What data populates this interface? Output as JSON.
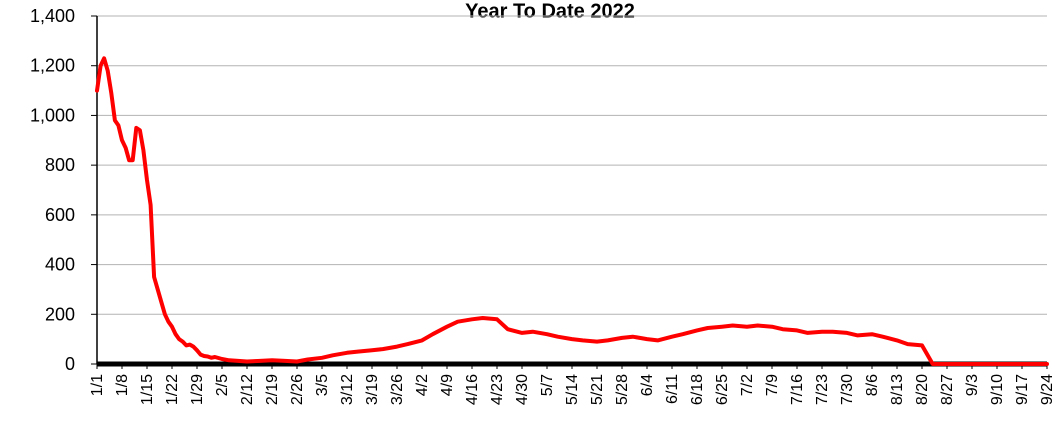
{
  "chart_data": {
    "type": "line",
    "title": "Year To Date 2022",
    "xlabel": "",
    "ylabel": "",
    "ylim": [
      0,
      1400
    ],
    "y_ticks": [
      "0",
      "200",
      "400",
      "600",
      "800",
      "1,000",
      "1,200",
      "1,400"
    ],
    "x_tick_labels": [
      "1/1",
      "1/8",
      "1/15",
      "1/22",
      "1/29",
      "2/5",
      "2/12",
      "2/19",
      "2/26",
      "3/5",
      "3/12",
      "3/19",
      "3/26",
      "4/2",
      "4/9",
      "4/16",
      "4/23",
      "4/30",
      "5/7",
      "5/14",
      "5/21",
      "5/28",
      "6/4",
      "6/11",
      "6/18",
      "6/25",
      "7/2",
      "7/9",
      "7/16",
      "7/23",
      "7/30",
      "8/6",
      "8/13",
      "8/20",
      "8/27",
      "9/3",
      "9/10",
      "9/17",
      "9/24"
    ],
    "grid": true,
    "colors": {
      "line": "#ff0000",
      "grid": "#b3b3b3",
      "axis": "#000000"
    },
    "series": [
      {
        "x": [
          0,
          1,
          2,
          3,
          4,
          5,
          6,
          7,
          8,
          9,
          10,
          11,
          12,
          13,
          14,
          15,
          16,
          17,
          18,
          19,
          20,
          21,
          22,
          23,
          24,
          25,
          26,
          27,
          28,
          29,
          30,
          31,
          32,
          33,
          35,
          37,
          40,
          42,
          45,
          49,
          52,
          56,
          59,
          63,
          66,
          70,
          73,
          77,
          80,
          84,
          87,
          91,
          94,
          98,
          101,
          105,
          108,
          112,
          115,
          119,
          122,
          126,
          129,
          133,
          136,
          140,
          143,
          147,
          150,
          154,
          157,
          161,
          164,
          168,
          171,
          175,
          178,
          182,
          185,
          189,
          192,
          196,
          199,
          203,
          206,
          210,
          213,
          217,
          220,
          224,
          227,
          231,
          234,
          238,
          241,
          245,
          248,
          252,
          255,
          259,
          262,
          265,
          266
        ],
        "values": [
          1100,
          1200,
          1230,
          1180,
          1090,
          980,
          960,
          900,
          870,
          820,
          820,
          950,
          940,
          860,
          740,
          640,
          350,
          300,
          250,
          200,
          170,
          150,
          120,
          100,
          90,
          75,
          78,
          70,
          55,
          38,
          32,
          30,
          25,
          28,
          20,
          15,
          12,
          10,
          12,
          15,
          13,
          10,
          18,
          25,
          35,
          45,
          50,
          55,
          60,
          70,
          80,
          95,
          120,
          150,
          170,
          180,
          185,
          180,
          140,
          125,
          130,
          120,
          110,
          100,
          95,
          90,
          95,
          105,
          110,
          100,
          95,
          110,
          120,
          135,
          145,
          150,
          155,
          150,
          155,
          150,
          140,
          135,
          125,
          130,
          130,
          125,
          115,
          120,
          110,
          95,
          80,
          75,
          0,
          0,
          0,
          0,
          0,
          0,
          0,
          0,
          0,
          0,
          0
        ]
      }
    ]
  }
}
